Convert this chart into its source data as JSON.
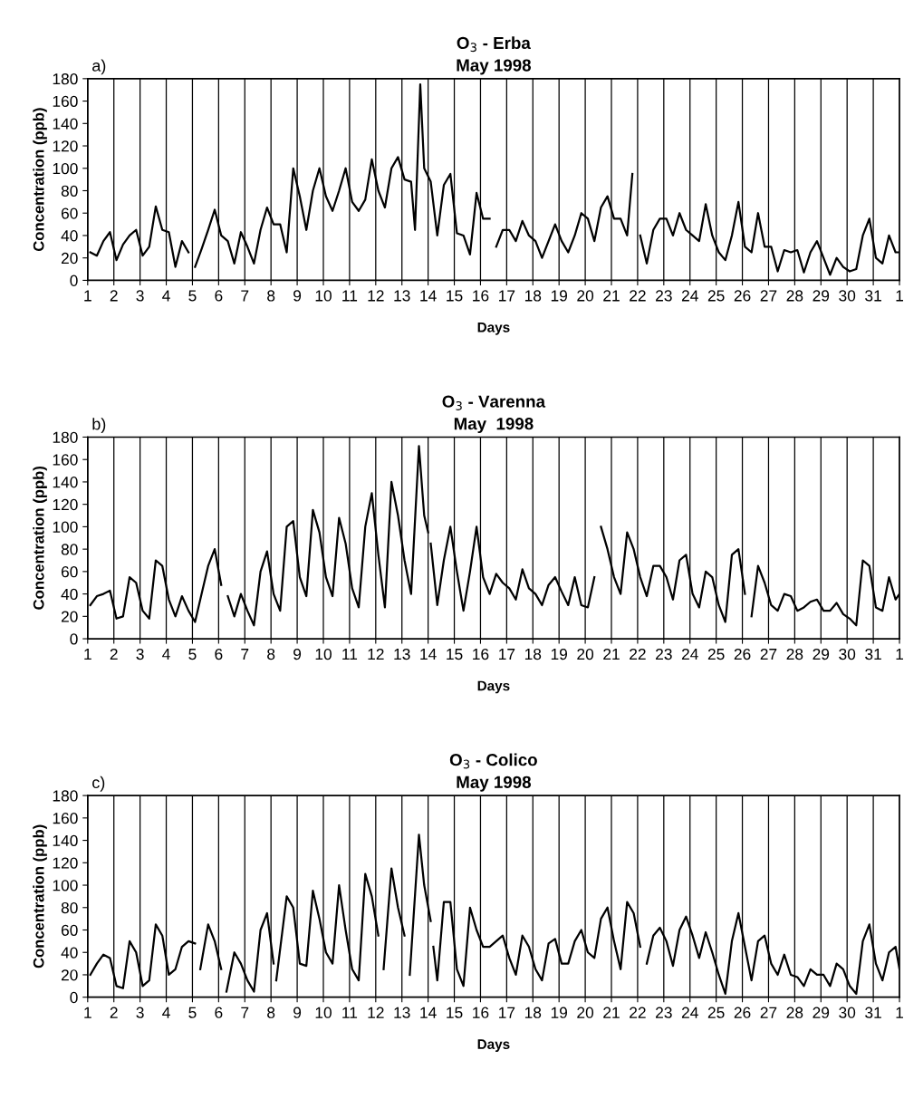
{
  "chart_data": [
    {
      "type": "line",
      "title": "O$_{3}$ - Erba",
      "subtitle": "May 1998",
      "xlabel": "Days",
      "ylabel": "Concentration (ppb)",
      "annotations": [
        "a)"
      ],
      "xlim": [
        "1998-05-01",
        "1998-06-01"
      ],
      "xticks": [
        {
          "value": "1998-05-01",
          "label": "1"
        },
        {
          "value": "1998-05-02",
          "label": "2"
        },
        {
          "value": "1998-05-03",
          "label": "3"
        },
        {
          "value": "1998-05-04",
          "label": "4"
        },
        {
          "value": "1998-05-05",
          "label": "5"
        },
        {
          "value": "1998-05-06",
          "label": "6"
        },
        {
          "value": "1998-05-07",
          "label": "7"
        },
        {
          "value": "1998-05-08",
          "label": "8"
        },
        {
          "value": "1998-05-09",
          "label": "9"
        },
        {
          "value": "1998-05-10",
          "label": "10"
        },
        {
          "value": "1998-05-11",
          "label": "11"
        },
        {
          "value": "1998-05-12",
          "label": "12"
        },
        {
          "value": "1998-05-13",
          "label": "13"
        },
        {
          "value": "1998-05-14",
          "label": "14"
        },
        {
          "value": "1998-05-15",
          "label": "15"
        },
        {
          "value": "1998-05-16",
          "label": "16"
        },
        {
          "value": "1998-05-17",
          "label": "17"
        },
        {
          "value": "1998-05-18",
          "label": "18"
        },
        {
          "value": "1998-05-19",
          "label": "19"
        },
        {
          "value": "1998-05-20",
          "label": "20"
        },
        {
          "value": "1998-05-21",
          "label": "21"
        },
        {
          "value": "1998-05-22",
          "label": "22"
        },
        {
          "value": "1998-05-23",
          "label": "23"
        },
        {
          "value": "1998-05-24",
          "label": "24"
        },
        {
          "value": "1998-05-25",
          "label": "25"
        },
        {
          "value": "1998-05-26",
          "label": "26"
        },
        {
          "value": "1998-05-27",
          "label": "27"
        },
        {
          "value": "1998-05-28",
          "label": "28"
        },
        {
          "value": "1998-05-29",
          "label": "29"
        },
        {
          "value": "1998-05-30",
          "label": "30"
        },
        {
          "value": "1998-05-31",
          "label": "31"
        },
        {
          "value": "1998-06-01",
          "label": "1"
        }
      ],
      "ylim": [
        0,
        180
      ],
      "yticks": [
        0,
        20,
        40,
        60,
        80,
        100,
        120,
        140,
        160,
        180
      ],
      "grid": "x",
      "marker": "none",
      "line_style": "solid",
      "series": [
        {
          "color": "#000000",
          "x": [
            "1998-05-01T02:24",
            "1998-05-01T08:24",
            "1998-05-01T14:24",
            "1998-05-01T20:24",
            "1998-05-02T02:24",
            "1998-05-02T08:24",
            "1998-05-02T14:24",
            "1998-05-02T20:24",
            "1998-05-03T02:24",
            "1998-05-03T08:24",
            "1998-05-03T14:24",
            "1998-05-03T20:24",
            "1998-05-04T02:24",
            "1998-05-04T08:24",
            "1998-05-04T14:24",
            "1998-05-04T20:24",
            "1998-05-04T22:48",
            "1998-05-05T02:24",
            "1998-05-05T08:24",
            "1998-05-05T14:24",
            "1998-05-05T20:24",
            "1998-05-06T02:24",
            "1998-05-06T08:24",
            "1998-05-06T14:24",
            "1998-05-06T20:24",
            "1998-05-07T02:24",
            "1998-05-07T08:24",
            "1998-05-07T14:24",
            "1998-05-07T20:24",
            "1998-05-08T02:24",
            "1998-05-08T08:24",
            "1998-05-08T14:24",
            "1998-05-08T20:24",
            "1998-05-09T02:24",
            "1998-05-09T08:24",
            "1998-05-09T14:24",
            "1998-05-09T20:24",
            "1998-05-10T02:24",
            "1998-05-10T08:24",
            "1998-05-10T14:24",
            "1998-05-10T20:24",
            "1998-05-11T02:24",
            "1998-05-11T08:24",
            "1998-05-11T14:24",
            "1998-05-11T20:24",
            "1998-05-12T02:24",
            "1998-05-12T08:24",
            "1998-05-12T14:24",
            "1998-05-12T20:24",
            "1998-05-13T02:24",
            "1998-05-13T08:24",
            "1998-05-13T12:00",
            "1998-05-13T16:48",
            "1998-05-13T20:24",
            "1998-05-14T02:24",
            "1998-05-14T08:24",
            "1998-05-14T14:24",
            "1998-05-14T20:24",
            "1998-05-15T02:24",
            "1998-05-15T08:24",
            "1998-05-15T14:24",
            "1998-05-15T20:24",
            "1998-05-16T02:24",
            "1998-05-16T08:24",
            "1998-05-16T10:48",
            "1998-05-16T14:24",
            "1998-05-16T20:24",
            "1998-05-17T02:24",
            "1998-05-17T08:24",
            "1998-05-17T14:24",
            "1998-05-17T20:24",
            "1998-05-18T02:24",
            "1998-05-18T08:24",
            "1998-05-18T14:24",
            "1998-05-18T20:24",
            "1998-05-19T02:24",
            "1998-05-19T08:24",
            "1998-05-19T14:24",
            "1998-05-19T20:24",
            "1998-05-20T02:24",
            "1998-05-20T08:24",
            "1998-05-20T14:24",
            "1998-05-20T20:24",
            "1998-05-21T02:24",
            "1998-05-21T08:24",
            "1998-05-21T14:24",
            "1998-05-21T19:12",
            "1998-05-22T00:00",
            "1998-05-22T02:24",
            "1998-05-22T08:24",
            "1998-05-22T14:24",
            "1998-05-22T20:24",
            "1998-05-23T02:24",
            "1998-05-23T08:24",
            "1998-05-23T14:24",
            "1998-05-23T20:24",
            "1998-05-24T02:24",
            "1998-05-24T08:24",
            "1998-05-24T14:24",
            "1998-05-24T20:24",
            "1998-05-25T02:24",
            "1998-05-25T08:24",
            "1998-05-25T14:24",
            "1998-05-25T20:24",
            "1998-05-26T02:24",
            "1998-05-26T08:24",
            "1998-05-26T14:24",
            "1998-05-26T20:24",
            "1998-05-27T02:24",
            "1998-05-27T08:24",
            "1998-05-27T14:24",
            "1998-05-27T20:24",
            "1998-05-28T02:24",
            "1998-05-28T08:24",
            "1998-05-28T14:24",
            "1998-05-28T20:24",
            "1998-05-29T02:24",
            "1998-05-29T08:24",
            "1998-05-29T14:24",
            "1998-05-29T20:24",
            "1998-05-30T02:24",
            "1998-05-30T08:24",
            "1998-05-30T14:24",
            "1998-05-30T20:24",
            "1998-05-31T02:24",
            "1998-05-31T08:24",
            "1998-05-31T14:24",
            "1998-05-31T20:24",
            "1998-06-01T00:00"
          ],
          "values": [
            25,
            22,
            35,
            43,
            18,
            32,
            40,
            45,
            22,
            30,
            66,
            45,
            43,
            12,
            35,
            25,
            null,
            12,
            28,
            45,
            63,
            40,
            35,
            15,
            43,
            30,
            15,
            45,
            65,
            50,
            50,
            25,
            100,
            75,
            45,
            80,
            100,
            75,
            62,
            80,
            100,
            70,
            62,
            72,
            108,
            80,
            65,
            100,
            110,
            90,
            88,
            45,
            175,
            100,
            88,
            40,
            85,
            95,
            42,
            40,
            23,
            78,
            55,
            55,
            null,
            30,
            45,
            45,
            35,
            53,
            40,
            35,
            20,
            35,
            50,
            35,
            25,
            40,
            60,
            55,
            35,
            65,
            75,
            55,
            55,
            40,
            95,
            null,
            40,
            15,
            45,
            55,
            55,
            40,
            60,
            45,
            40,
            35,
            68,
            40,
            25,
            18,
            40,
            70,
            30,
            25,
            60,
            30,
            30,
            8,
            27,
            25,
            27,
            7,
            25,
            35,
            20,
            5,
            20,
            12,
            8,
            10,
            40,
            55,
            20,
            15,
            40,
            25,
            25
          ]
        }
      ]
    },
    {
      "type": "line",
      "title": "O$_{3}$ - Varenna",
      "subtitle": "May  1998",
      "xlabel": "Days",
      "ylabel": "Concentration (ppb)",
      "annotations": [
        "b)"
      ],
      "xlim": [
        "1998-05-01",
        "1998-06-01"
      ],
      "xticks": [
        {
          "value": "1998-05-01",
          "label": "1"
        },
        {
          "value": "1998-05-02",
          "label": "2"
        },
        {
          "value": "1998-05-03",
          "label": "3"
        },
        {
          "value": "1998-05-04",
          "label": "4"
        },
        {
          "value": "1998-05-05",
          "label": "5"
        },
        {
          "value": "1998-05-06",
          "label": "6"
        },
        {
          "value": "1998-05-07",
          "label": "7"
        },
        {
          "value": "1998-05-08",
          "label": "8"
        },
        {
          "value": "1998-05-09",
          "label": "9"
        },
        {
          "value": "1998-05-10",
          "label": "10"
        },
        {
          "value": "1998-05-11",
          "label": "11"
        },
        {
          "value": "1998-05-12",
          "label": "12"
        },
        {
          "value": "1998-05-13",
          "label": "13"
        },
        {
          "value": "1998-05-14",
          "label": "14"
        },
        {
          "value": "1998-05-15",
          "label": "15"
        },
        {
          "value": "1998-05-16",
          "label": "16"
        },
        {
          "value": "1998-05-17",
          "label": "17"
        },
        {
          "value": "1998-05-18",
          "label": "18"
        },
        {
          "value": "1998-05-19",
          "label": "19"
        },
        {
          "value": "1998-05-20",
          "label": "20"
        },
        {
          "value": "1998-05-21",
          "label": "21"
        },
        {
          "value": "1998-05-22",
          "label": "22"
        },
        {
          "value": "1998-05-23",
          "label": "23"
        },
        {
          "value": "1998-05-24",
          "label": "24"
        },
        {
          "value": "1998-05-25",
          "label": "25"
        },
        {
          "value": "1998-05-26",
          "label": "26"
        },
        {
          "value": "1998-05-27",
          "label": "27"
        },
        {
          "value": "1998-05-28",
          "label": "28"
        },
        {
          "value": "1998-05-29",
          "label": "29"
        },
        {
          "value": "1998-05-30",
          "label": "30"
        },
        {
          "value": "1998-05-31",
          "label": "31"
        },
        {
          "value": "1998-06-01",
          "label": "1"
        }
      ],
      "ylim": [
        0,
        180
      ],
      "yticks": [
        0,
        20,
        40,
        60,
        80,
        100,
        120,
        140,
        160,
        180
      ],
      "grid": "x",
      "marker": "none",
      "line_style": "solid",
      "series": [
        {
          "color": "#000000",
          "x": [
            "1998-05-01T02:24",
            "1998-05-01T08:24",
            "1998-05-01T14:24",
            "1998-05-01T20:24",
            "1998-05-02T02:24",
            "1998-05-02T08:24",
            "1998-05-02T14:24",
            "1998-05-02T20:24",
            "1998-05-03T02:24",
            "1998-05-03T08:24",
            "1998-05-03T14:24",
            "1998-05-03T20:24",
            "1998-05-04T02:24",
            "1998-05-04T08:24",
            "1998-05-04T14:24",
            "1998-05-04T20:24",
            "1998-05-05T02:24",
            "1998-05-05T08:24",
            "1998-05-05T14:24",
            "1998-05-05T20:24",
            "1998-05-06T02:24",
            "1998-05-06T04:48",
            "1998-05-06T08:24",
            "1998-05-06T14:24",
            "1998-05-06T20:24",
            "1998-05-07T02:24",
            "1998-05-07T08:24",
            "1998-05-07T14:24",
            "1998-05-07T20:24",
            "1998-05-08T02:24",
            "1998-05-08T08:24",
            "1998-05-08T14:24",
            "1998-05-08T20:24",
            "1998-05-09T02:24",
            "1998-05-09T08:24",
            "1998-05-09T14:24",
            "1998-05-09T20:24",
            "1998-05-10T02:24",
            "1998-05-10T08:24",
            "1998-05-10T14:24",
            "1998-05-10T20:24",
            "1998-05-11T02:24",
            "1998-05-11T08:24",
            "1998-05-11T14:24",
            "1998-05-11T20:24",
            "1998-05-12T02:24",
            "1998-05-12T08:24",
            "1998-05-12T14:24",
            "1998-05-12T20:24",
            "1998-05-13T02:24",
            "1998-05-13T08:24",
            "1998-05-13T15:36",
            "1998-05-13T20:24",
            "1998-05-14T00:00",
            "1998-05-14T01:12",
            "1998-05-14T02:24",
            "1998-05-14T08:24",
            "1998-05-14T14:24",
            "1998-05-14T20:24",
            "1998-05-15T02:24",
            "1998-05-15T08:24",
            "1998-05-15T14:24",
            "1998-05-15T20:24",
            "1998-05-16T02:24",
            "1998-05-16T08:24",
            "1998-05-16T14:24",
            "1998-05-16T20:24",
            "1998-05-17T02:24",
            "1998-05-17T08:24",
            "1998-05-17T14:24",
            "1998-05-17T20:24",
            "1998-05-18T02:24",
            "1998-05-18T08:24",
            "1998-05-18T14:24",
            "1998-05-18T20:24",
            "1998-05-19T02:24",
            "1998-05-19T08:24",
            "1998-05-19T14:24",
            "1998-05-19T20:24",
            "1998-05-20T02:24",
            "1998-05-20T08:24",
            "1998-05-20T10:48",
            "1998-05-20T14:24",
            "1998-05-20T20:24",
            "1998-05-21T02:24",
            "1998-05-21T08:24",
            "1998-05-21T14:24",
            "1998-05-21T20:24",
            "1998-05-22T02:24",
            "1998-05-22T08:24",
            "1998-05-22T14:24",
            "1998-05-22T20:24",
            "1998-05-23T02:24",
            "1998-05-23T08:24",
            "1998-05-23T14:24",
            "1998-05-23T20:24",
            "1998-05-24T02:24",
            "1998-05-24T08:24",
            "1998-05-24T14:24",
            "1998-05-24T20:24",
            "1998-05-25T02:24",
            "1998-05-25T08:24",
            "1998-05-25T14:24",
            "1998-05-25T20:24",
            "1998-05-26T02:24",
            "1998-05-26T04:48",
            "1998-05-26T08:24",
            "1998-05-26T14:24",
            "1998-05-26T20:24",
            "1998-05-27T02:24",
            "1998-05-27T08:24",
            "1998-05-27T14:24",
            "1998-05-27T20:24",
            "1998-05-28T02:24",
            "1998-05-28T08:24",
            "1998-05-28T14:24",
            "1998-05-28T20:24",
            "1998-05-29T02:24",
            "1998-05-29T08:24",
            "1998-05-29T14:24",
            "1998-05-29T20:24",
            "1998-05-30T02:24",
            "1998-05-30T08:24",
            "1998-05-30T14:24",
            "1998-05-30T20:24",
            "1998-05-31T02:24",
            "1998-05-31T08:24",
            "1998-05-31T14:24",
            "1998-05-31T20:24",
            "1998-06-01T00:00"
          ],
          "values": [
            30,
            38,
            40,
            43,
            18,
            20,
            55,
            50,
            25,
            18,
            70,
            65,
            35,
            20,
            38,
            25,
            15,
            40,
            65,
            80,
            48,
            null,
            38,
            20,
            40,
            25,
            12,
            60,
            78,
            40,
            25,
            100,
            105,
            55,
            38,
            115,
            95,
            55,
            38,
            108,
            85,
            45,
            28,
            100,
            130,
            75,
            28,
            140,
            110,
            70,
            40,
            172,
            110,
            95,
            null,
            85,
            30,
            70,
            100,
            60,
            25,
            60,
            100,
            55,
            40,
            58,
            50,
            45,
            35,
            62,
            45,
            40,
            30,
            48,
            55,
            42,
            30,
            55,
            30,
            28,
            55,
            null,
            100,
            80,
            55,
            40,
            95,
            80,
            55,
            38,
            65,
            65,
            55,
            35,
            70,
            75,
            40,
            28,
            60,
            55,
            30,
            15,
            75,
            80,
            40,
            null,
            20,
            65,
            50,
            30,
            25,
            40,
            38,
            25,
            28,
            33,
            35,
            25,
            25,
            32,
            22,
            18,
            12,
            70,
            65,
            28,
            25,
            55,
            35,
            40
          ]
        }
      ]
    },
    {
      "type": "line",
      "title": "O$_{3}$ - Colico",
      "subtitle": "May 1998",
      "xlabel": "Days",
      "ylabel": "Concentration (ppb)",
      "annotations": [
        "c)"
      ],
      "xlim": [
        "1998-05-01",
        "1998-06-01"
      ],
      "xticks": [
        {
          "value": "1998-05-01",
          "label": "1"
        },
        {
          "value": "1998-05-02",
          "label": "2"
        },
        {
          "value": "1998-05-03",
          "label": "3"
        },
        {
          "value": "1998-05-04",
          "label": "4"
        },
        {
          "value": "1998-05-05",
          "label": "5"
        },
        {
          "value": "1998-05-06",
          "label": "6"
        },
        {
          "value": "1998-05-07",
          "label": "7"
        },
        {
          "value": "1998-05-08",
          "label": "8"
        },
        {
          "value": "1998-05-09",
          "label": "9"
        },
        {
          "value": "1998-05-10",
          "label": "10"
        },
        {
          "value": "1998-05-11",
          "label": "11"
        },
        {
          "value": "1998-05-12",
          "label": "12"
        },
        {
          "value": "1998-05-13",
          "label": "13"
        },
        {
          "value": "1998-05-14",
          "label": "14"
        },
        {
          "value": "1998-05-15",
          "label": "15"
        },
        {
          "value": "1998-05-16",
          "label": "16"
        },
        {
          "value": "1998-05-17",
          "label": "17"
        },
        {
          "value": "1998-05-18",
          "label": "18"
        },
        {
          "value": "1998-05-19",
          "label": "19"
        },
        {
          "value": "1998-05-20",
          "label": "20"
        },
        {
          "value": "1998-05-21",
          "label": "21"
        },
        {
          "value": "1998-05-22",
          "label": "22"
        },
        {
          "value": "1998-05-23",
          "label": "23"
        },
        {
          "value": "1998-05-24",
          "label": "24"
        },
        {
          "value": "1998-05-25",
          "label": "25"
        },
        {
          "value": "1998-05-26",
          "label": "26"
        },
        {
          "value": "1998-05-27",
          "label": "27"
        },
        {
          "value": "1998-05-28",
          "label": "28"
        },
        {
          "value": "1998-05-29",
          "label": "29"
        },
        {
          "value": "1998-05-30",
          "label": "30"
        },
        {
          "value": "1998-05-31",
          "label": "31"
        },
        {
          "value": "1998-06-01",
          "label": "1"
        }
      ],
      "ylim": [
        0,
        180
      ],
      "yticks": [
        0,
        20,
        40,
        60,
        80,
        100,
        120,
        140,
        160,
        180
      ],
      "grid": "x",
      "marker": "none",
      "line_style": "solid",
      "series": [
        {
          "color": "#000000",
          "x": [
            "1998-05-01T02:24",
            "1998-05-01T08:24",
            "1998-05-01T14:24",
            "1998-05-01T20:24",
            "1998-05-02T02:24",
            "1998-05-02T08:24",
            "1998-05-02T14:24",
            "1998-05-02T20:24",
            "1998-05-03T02:24",
            "1998-05-03T08:24",
            "1998-05-03T14:24",
            "1998-05-03T20:24",
            "1998-05-04T02:24",
            "1998-05-04T08:24",
            "1998-05-04T14:24",
            "1998-05-04T20:24",
            "1998-05-05T02:24",
            "1998-05-05T04:48",
            "1998-05-05T07:12",
            "1998-05-05T14:24",
            "1998-05-05T20:24",
            "1998-05-06T02:24",
            "1998-05-06T04:48",
            "1998-05-06T07:12",
            "1998-05-06T14:24",
            "1998-05-06T20:24",
            "1998-05-07T02:24",
            "1998-05-07T08:24",
            "1998-05-07T14:24",
            "1998-05-07T20:24",
            "1998-05-08T02:24",
            "1998-05-08T03:36",
            "1998-05-08T04:48",
            "1998-05-08T14:24",
            "1998-05-08T20:24",
            "1998-05-09T02:24",
            "1998-05-09T08:24",
            "1998-05-09T14:24",
            "1998-05-09T20:24",
            "1998-05-10T02:24",
            "1998-05-10T08:24",
            "1998-05-10T14:24",
            "1998-05-10T20:24",
            "1998-05-11T02:24",
            "1998-05-11T08:24",
            "1998-05-11T14:24",
            "1998-05-11T20:24",
            "1998-05-12T02:24",
            "1998-05-12T04:48",
            "1998-05-12T07:12",
            "1998-05-12T14:24",
            "1998-05-12T20:24",
            "1998-05-13T02:24",
            "1998-05-13T04:48",
            "1998-05-13T07:12",
            "1998-05-13T15:36",
            "1998-05-13T20:24",
            "1998-05-14T02:24",
            "1998-05-14T03:36",
            "1998-05-14T04:48",
            "1998-05-14T08:24",
            "1998-05-14T14:24",
            "1998-05-14T20:24",
            "1998-05-15T02:24",
            "1998-05-15T08:24",
            "1998-05-15T14:24",
            "1998-05-15T20:24",
            "1998-05-16T02:24",
            "1998-05-16T08:24",
            "1998-05-16T14:24",
            "1998-05-16T20:24",
            "1998-05-17T02:24",
            "1998-05-17T08:24",
            "1998-05-17T14:24",
            "1998-05-17T20:24",
            "1998-05-18T02:24",
            "1998-05-18T08:24",
            "1998-05-18T14:24",
            "1998-05-18T20:24",
            "1998-05-19T02:24",
            "1998-05-19T08:24",
            "1998-05-19T14:24",
            "1998-05-19T20:24",
            "1998-05-20T02:24",
            "1998-05-20T08:24",
            "1998-05-20T14:24",
            "1998-05-20T20:24",
            "1998-05-21T02:24",
            "1998-05-21T08:24",
            "1998-05-21T14:24",
            "1998-05-21T20:24",
            "1998-05-22T02:24",
            "1998-05-22T04:48",
            "1998-05-22T08:24",
            "1998-05-22T14:24",
            "1998-05-22T20:24",
            "1998-05-23T02:24",
            "1998-05-23T08:24",
            "1998-05-23T14:24",
            "1998-05-23T20:24",
            "1998-05-24T02:24",
            "1998-05-24T08:24",
            "1998-05-24T14:24",
            "1998-05-24T20:24",
            "1998-05-25T02:24",
            "1998-05-25T08:24",
            "1998-05-25T14:24",
            "1998-05-25T20:24",
            "1998-05-26T02:24",
            "1998-05-26T08:24",
            "1998-05-26T14:24",
            "1998-05-26T20:24",
            "1998-05-27T02:24",
            "1998-05-27T08:24",
            "1998-05-27T14:24",
            "1998-05-27T20:24",
            "1998-05-28T02:24",
            "1998-05-28T08:24",
            "1998-05-28T14:24",
            "1998-05-28T20:24",
            "1998-05-29T02:24",
            "1998-05-29T08:24",
            "1998-05-29T14:24",
            "1998-05-29T20:24",
            "1998-05-30T02:24",
            "1998-05-30T08:24",
            "1998-05-30T14:24",
            "1998-05-30T20:24",
            "1998-05-31T02:24",
            "1998-05-31T08:24",
            "1998-05-31T14:24",
            "1998-05-31T20:24",
            "1998-06-01T00:00"
          ],
          "values": [
            20,
            30,
            38,
            35,
            10,
            8,
            50,
            40,
            10,
            15,
            65,
            55,
            20,
            25,
            45,
            50,
            48,
            null,
            25,
            65,
            50,
            25,
            null,
            5,
            40,
            30,
            15,
            5,
            60,
            75,
            30,
            null,
            15,
            90,
            80,
            30,
            28,
            95,
            70,
            40,
            30,
            100,
            60,
            25,
            15,
            110,
            90,
            55,
            null,
            25,
            115,
            80,
            55,
            null,
            20,
            145,
            100,
            68,
            null,
            45,
            15,
            85,
            85,
            25,
            10,
            80,
            60,
            45,
            45,
            50,
            55,
            35,
            20,
            55,
            45,
            25,
            15,
            48,
            52,
            30,
            30,
            50,
            60,
            40,
            35,
            70,
            80,
            50,
            25,
            85,
            75,
            45,
            null,
            30,
            55,
            62,
            50,
            28,
            60,
            72,
            55,
            35,
            58,
            40,
            20,
            3,
            50,
            75,
            45,
            15,
            50,
            55,
            30,
            20,
            38,
            20,
            18,
            10,
            25,
            20,
            20,
            10,
            30,
            25,
            10,
            3,
            50,
            65,
            30,
            15,
            40,
            45,
            25
          ]
        }
      ]
    }
  ]
}
